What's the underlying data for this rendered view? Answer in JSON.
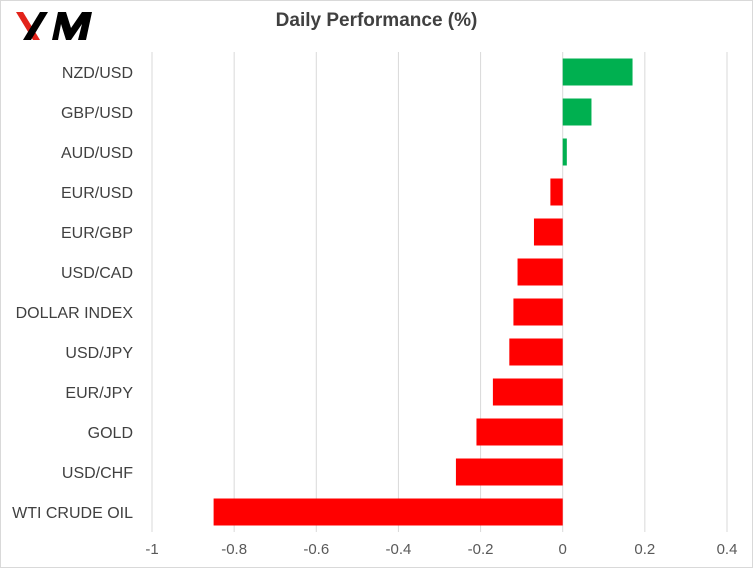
{
  "logo": {
    "text": "XM",
    "colors": {
      "red": "#e2231a",
      "black": "#000000"
    }
  },
  "chart_data": {
    "type": "bar",
    "orientation": "horizontal",
    "title": "Daily Performance  (%)",
    "xlabel": "",
    "ylabel": "",
    "xlim": [
      -1,
      0.4
    ],
    "ticks": [
      "-1",
      "-0.8",
      "-0.6",
      "-0.4",
      "-0.2",
      "0",
      "0.2",
      "0.4"
    ],
    "tick_values": [
      -1,
      -0.8,
      -0.6,
      -0.4,
      -0.2,
      0,
      0.2,
      0.4
    ],
    "grid": "vertical",
    "legend": "none",
    "positive_color": "#00b050",
    "negative_color": "#ff0000",
    "categories": [
      "NZD/USD",
      "GBP/USD",
      "AUD/USD",
      "EUR/USD",
      "EUR/GBP",
      "USD/CAD",
      "DOLLAR INDEX",
      "USD/JPY",
      "EUR/JPY",
      "GOLD",
      "USD/CHF",
      "WTI CRUDE OIL"
    ],
    "values": [
      0.17,
      0.07,
      0.01,
      -0.03,
      -0.07,
      -0.11,
      -0.12,
      -0.13,
      -0.17,
      -0.21,
      -0.26,
      -0.85
    ]
  }
}
